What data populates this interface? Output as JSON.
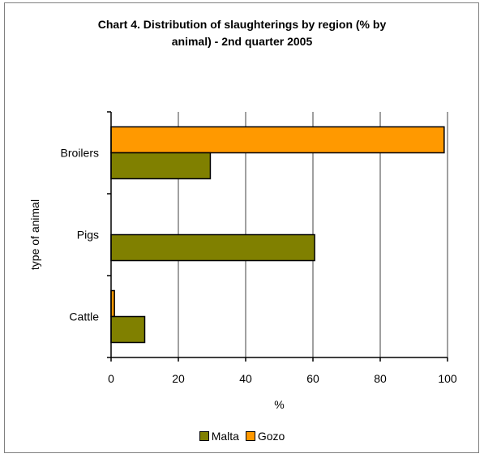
{
  "chart_data": {
    "type": "bar",
    "orientation": "horizontal",
    "title_line1": "Chart 4.  Distribution of slaughterings by region (% by",
    "title_line2": "animal) - 2nd quarter 2005",
    "xlabel": "%",
    "ylabel": "type of animal",
    "categories": [
      "Broilers",
      "Pigs",
      "Cattle"
    ],
    "series": [
      {
        "name": "Malta",
        "color": "#808000",
        "values": [
          29.5,
          60.5,
          10
        ]
      },
      {
        "name": "Gozo",
        "color": "#ff9900",
        "values": [
          99,
          0,
          1
        ]
      }
    ],
    "xlim": [
      0,
      100
    ],
    "xticks": [
      0,
      20,
      40,
      60,
      80,
      100
    ],
    "grid": true,
    "legend_position": "bottom"
  }
}
